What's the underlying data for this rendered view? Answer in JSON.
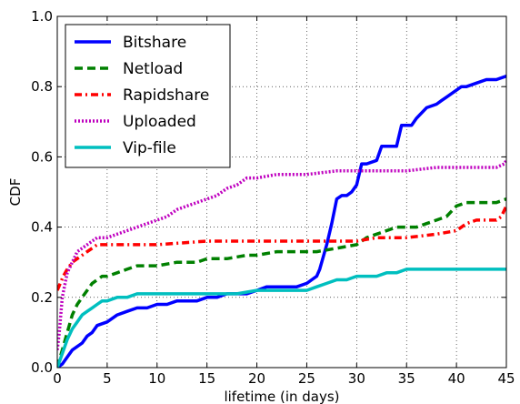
{
  "chart_data": {
    "type": "line",
    "title": "",
    "xlabel": "lifetime (in days)",
    "ylabel": "CDF",
    "xlim": [
      0,
      45
    ],
    "ylim": [
      0,
      1.0
    ],
    "xticks": [
      0,
      5,
      10,
      15,
      20,
      25,
      30,
      35,
      40,
      45
    ],
    "yticks": [
      0.0,
      0.2,
      0.4,
      0.6,
      0.8,
      1.0
    ],
    "ytick_labels": [
      "0.0",
      "0.2",
      "0.4",
      "0.6",
      "0.8",
      "1.0"
    ],
    "grid": true,
    "legend_position": "top-left",
    "series": [
      {
        "name": "Bitshare",
        "color": "#0000ff",
        "style": "solid",
        "x": [
          0,
          0.5,
          1,
          1.5,
          2,
          2.5,
          3,
          3.5,
          4,
          5,
          6,
          7,
          8,
          9,
          10,
          11,
          12,
          13,
          14,
          15,
          16,
          17,
          18,
          19,
          20,
          21,
          22,
          23,
          24,
          25,
          25.5,
          26,
          26.3,
          26.6,
          27,
          27.5,
          28,
          28.5,
          29,
          29.5,
          30,
          30.5,
          31,
          32,
          32.5,
          33,
          34,
          34.5,
          35,
          35.5,
          36,
          37,
          38,
          38.5,
          39,
          40,
          40.5,
          41,
          42,
          43,
          44,
          45
        ],
        "y": [
          0,
          0.01,
          0.03,
          0.05,
          0.06,
          0.07,
          0.09,
          0.1,
          0.12,
          0.13,
          0.15,
          0.16,
          0.17,
          0.17,
          0.18,
          0.18,
          0.19,
          0.19,
          0.19,
          0.2,
          0.2,
          0.21,
          0.21,
          0.21,
          0.22,
          0.23,
          0.23,
          0.23,
          0.23,
          0.24,
          0.25,
          0.26,
          0.28,
          0.31,
          0.35,
          0.41,
          0.48,
          0.49,
          0.49,
          0.5,
          0.52,
          0.58,
          0.58,
          0.59,
          0.63,
          0.63,
          0.63,
          0.69,
          0.69,
          0.69,
          0.71,
          0.74,
          0.75,
          0.76,
          0.77,
          0.79,
          0.8,
          0.8,
          0.81,
          0.82,
          0.82,
          0.83
        ]
      },
      {
        "name": "Netload",
        "color": "#008000",
        "style": "dashed",
        "x": [
          0,
          0.5,
          1,
          1.5,
          2,
          2.5,
          3,
          3.5,
          4,
          4.5,
          5,
          6,
          7,
          8,
          10,
          12,
          14,
          15,
          17,
          19,
          20,
          22,
          24,
          26,
          28,
          30,
          31,
          32,
          33,
          34,
          35,
          36,
          37,
          38,
          39,
          40,
          41,
          42,
          43,
          44,
          45
        ],
        "y": [
          0,
          0.05,
          0.1,
          0.15,
          0.18,
          0.2,
          0.22,
          0.24,
          0.25,
          0.26,
          0.26,
          0.27,
          0.28,
          0.29,
          0.29,
          0.3,
          0.3,
          0.31,
          0.31,
          0.32,
          0.32,
          0.33,
          0.33,
          0.33,
          0.34,
          0.35,
          0.37,
          0.38,
          0.39,
          0.4,
          0.4,
          0.4,
          0.41,
          0.42,
          0.43,
          0.46,
          0.47,
          0.47,
          0.47,
          0.47,
          0.48
        ]
      },
      {
        "name": "Rapidshare",
        "color": "#ff0000",
        "style": "dashdot",
        "x": [
          0,
          0.3,
          0.6,
          1,
          1.5,
          2,
          2.5,
          3,
          3.5,
          4,
          5,
          7,
          10,
          15,
          20,
          25,
          27,
          30,
          32,
          35,
          38,
          40,
          41,
          42,
          43,
          44,
          44.5,
          45
        ],
        "y": [
          0.22,
          0.24,
          0.26,
          0.28,
          0.3,
          0.31,
          0.32,
          0.33,
          0.34,
          0.35,
          0.35,
          0.35,
          0.35,
          0.36,
          0.36,
          0.36,
          0.36,
          0.36,
          0.37,
          0.37,
          0.38,
          0.39,
          0.41,
          0.42,
          0.42,
          0.42,
          0.43,
          0.46
        ]
      },
      {
        "name": "Uploaded",
        "color": "#bf00bf",
        "style": "dotted",
        "x": [
          0,
          0.2,
          0.5,
          1,
          1.5,
          2,
          2.5,
          3,
          3.5,
          4,
          5,
          6,
          7,
          8,
          9,
          10,
          11,
          12,
          13,
          14,
          15,
          16,
          17,
          18,
          19,
          20,
          22,
          25,
          28,
          30,
          32,
          35,
          38,
          40,
          42,
          44,
          44.8,
          45
        ],
        "y": [
          0.05,
          0.1,
          0.2,
          0.27,
          0.3,
          0.33,
          0.34,
          0.35,
          0.36,
          0.37,
          0.37,
          0.38,
          0.39,
          0.4,
          0.41,
          0.42,
          0.43,
          0.45,
          0.46,
          0.47,
          0.48,
          0.49,
          0.51,
          0.52,
          0.54,
          0.54,
          0.55,
          0.55,
          0.56,
          0.56,
          0.56,
          0.56,
          0.57,
          0.57,
          0.57,
          0.57,
          0.58,
          0.59
        ]
      },
      {
        "name": "Vip-file",
        "color": "#00bfbf",
        "style": "solid",
        "x": [
          0,
          0.5,
          1,
          1.5,
          2,
          2.5,
          3,
          3.5,
          4,
          4.5,
          5,
          6,
          7,
          8,
          9,
          10,
          12,
          15,
          18,
          20,
          22,
          25,
          26,
          27,
          28,
          29,
          30,
          31,
          32,
          33,
          34,
          35,
          37,
          40,
          42,
          45
        ],
        "y": [
          0,
          0.04,
          0.08,
          0.11,
          0.13,
          0.15,
          0.16,
          0.17,
          0.18,
          0.19,
          0.19,
          0.2,
          0.2,
          0.21,
          0.21,
          0.21,
          0.21,
          0.21,
          0.21,
          0.22,
          0.22,
          0.22,
          0.23,
          0.24,
          0.25,
          0.25,
          0.26,
          0.26,
          0.26,
          0.27,
          0.27,
          0.28,
          0.28,
          0.28,
          0.28,
          0.28
        ]
      }
    ]
  }
}
